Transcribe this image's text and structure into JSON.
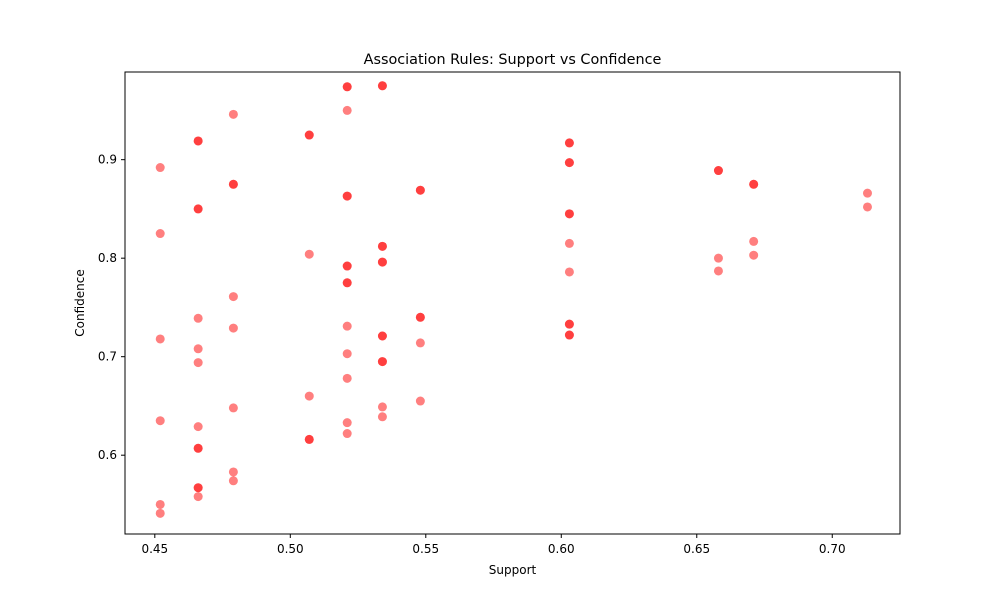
{
  "chart_data": {
    "type": "scatter",
    "title": "Association Rules: Support vs Confidence",
    "xlabel": "Support",
    "ylabel": "Confidence",
    "xlim": [
      0.439,
      0.725
    ],
    "ylim": [
      0.52,
      0.989
    ],
    "xticks": [
      0.45,
      0.5,
      0.55,
      0.6,
      0.65,
      0.7
    ],
    "xtick_labels": [
      "0.45",
      "0.50",
      "0.55",
      "0.60",
      "0.65",
      "0.70"
    ],
    "yticks": [
      0.6,
      0.7,
      0.8,
      0.9
    ],
    "ytick_labels": [
      "0.6",
      "0.7",
      "0.8",
      "0.9"
    ],
    "grid": false,
    "marker_color": "#ff0000",
    "marker_alpha": 0.5,
    "points": [
      {
        "x": 0.452,
        "y": 0.892
      },
      {
        "x": 0.452,
        "y": 0.825
      },
      {
        "x": 0.452,
        "y": 0.718
      },
      {
        "x": 0.452,
        "y": 0.635
      },
      {
        "x": 0.452,
        "y": 0.55
      },
      {
        "x": 0.452,
        "y": 0.541
      },
      {
        "x": 0.466,
        "y": 0.919
      },
      {
        "x": 0.466,
        "y": 0.919
      },
      {
        "x": 0.466,
        "y": 0.85
      },
      {
        "x": 0.466,
        "y": 0.85
      },
      {
        "x": 0.466,
        "y": 0.739
      },
      {
        "x": 0.466,
        "y": 0.708
      },
      {
        "x": 0.466,
        "y": 0.694
      },
      {
        "x": 0.466,
        "y": 0.629
      },
      {
        "x": 0.466,
        "y": 0.607
      },
      {
        "x": 0.466,
        "y": 0.607
      },
      {
        "x": 0.466,
        "y": 0.567
      },
      {
        "x": 0.466,
        "y": 0.567
      },
      {
        "x": 0.466,
        "y": 0.558
      },
      {
        "x": 0.479,
        "y": 0.946
      },
      {
        "x": 0.479,
        "y": 0.875
      },
      {
        "x": 0.479,
        "y": 0.875
      },
      {
        "x": 0.479,
        "y": 0.761
      },
      {
        "x": 0.479,
        "y": 0.729
      },
      {
        "x": 0.479,
        "y": 0.648
      },
      {
        "x": 0.479,
        "y": 0.583
      },
      {
        "x": 0.479,
        "y": 0.574
      },
      {
        "x": 0.507,
        "y": 0.925
      },
      {
        "x": 0.507,
        "y": 0.925
      },
      {
        "x": 0.507,
        "y": 0.804
      },
      {
        "x": 0.507,
        "y": 0.66
      },
      {
        "x": 0.507,
        "y": 0.616
      },
      {
        "x": 0.507,
        "y": 0.616
      },
      {
        "x": 0.521,
        "y": 0.974
      },
      {
        "x": 0.521,
        "y": 0.974
      },
      {
        "x": 0.521,
        "y": 0.95
      },
      {
        "x": 0.521,
        "y": 0.863
      },
      {
        "x": 0.521,
        "y": 0.863
      },
      {
        "x": 0.521,
        "y": 0.792
      },
      {
        "x": 0.521,
        "y": 0.792
      },
      {
        "x": 0.521,
        "y": 0.775
      },
      {
        "x": 0.521,
        "y": 0.775
      },
      {
        "x": 0.521,
        "y": 0.731
      },
      {
        "x": 0.521,
        "y": 0.703
      },
      {
        "x": 0.521,
        "y": 0.678
      },
      {
        "x": 0.521,
        "y": 0.633
      },
      {
        "x": 0.521,
        "y": 0.622
      },
      {
        "x": 0.534,
        "y": 0.975
      },
      {
        "x": 0.534,
        "y": 0.975
      },
      {
        "x": 0.534,
        "y": 0.812
      },
      {
        "x": 0.534,
        "y": 0.812
      },
      {
        "x": 0.534,
        "y": 0.796
      },
      {
        "x": 0.534,
        "y": 0.796
      },
      {
        "x": 0.534,
        "y": 0.721
      },
      {
        "x": 0.534,
        "y": 0.721
      },
      {
        "x": 0.534,
        "y": 0.695
      },
      {
        "x": 0.534,
        "y": 0.695
      },
      {
        "x": 0.534,
        "y": 0.649
      },
      {
        "x": 0.534,
        "y": 0.639
      },
      {
        "x": 0.548,
        "y": 0.869
      },
      {
        "x": 0.548,
        "y": 0.869
      },
      {
        "x": 0.548,
        "y": 0.74
      },
      {
        "x": 0.548,
        "y": 0.74
      },
      {
        "x": 0.548,
        "y": 0.714
      },
      {
        "x": 0.548,
        "y": 0.655
      },
      {
        "x": 0.603,
        "y": 0.917
      },
      {
        "x": 0.603,
        "y": 0.917
      },
      {
        "x": 0.603,
        "y": 0.897
      },
      {
        "x": 0.603,
        "y": 0.897
      },
      {
        "x": 0.603,
        "y": 0.845
      },
      {
        "x": 0.603,
        "y": 0.845
      },
      {
        "x": 0.603,
        "y": 0.815
      },
      {
        "x": 0.603,
        "y": 0.786
      },
      {
        "x": 0.603,
        "y": 0.733
      },
      {
        "x": 0.603,
        "y": 0.733
      },
      {
        "x": 0.603,
        "y": 0.722
      },
      {
        "x": 0.603,
        "y": 0.722
      },
      {
        "x": 0.658,
        "y": 0.889
      },
      {
        "x": 0.658,
        "y": 0.889
      },
      {
        "x": 0.658,
        "y": 0.8
      },
      {
        "x": 0.658,
        "y": 0.787
      },
      {
        "x": 0.671,
        "y": 0.875
      },
      {
        "x": 0.671,
        "y": 0.875
      },
      {
        "x": 0.671,
        "y": 0.817
      },
      {
        "x": 0.671,
        "y": 0.803
      },
      {
        "x": 0.713,
        "y": 0.866
      },
      {
        "x": 0.713,
        "y": 0.852
      }
    ]
  }
}
